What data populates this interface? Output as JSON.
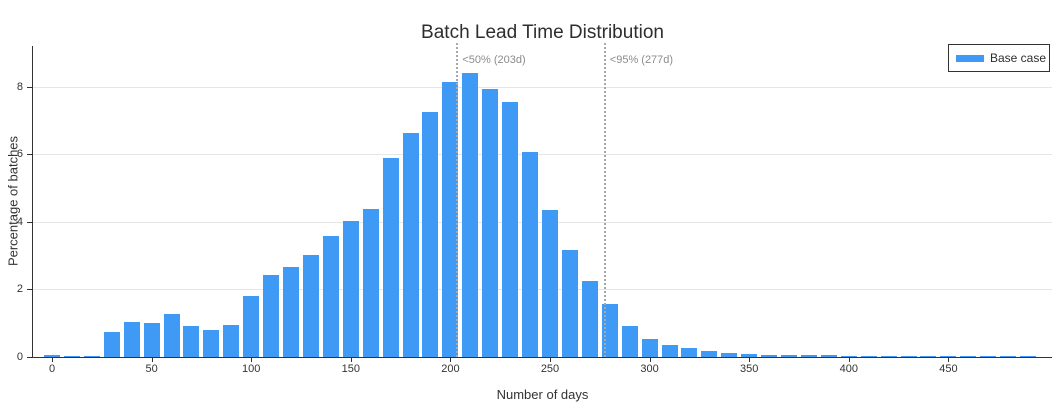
{
  "title": "Batch Lead Time Distribution",
  "legend": {
    "items": [
      {
        "label": "Base case",
        "color": "#3E9AF5"
      }
    ]
  },
  "colors": {
    "bar": "#3E9AF5",
    "grid": "#E6E6E6",
    "axis": "#333333",
    "annotation_text": "#8C8C8C",
    "dotted_line": "#A8A8A8",
    "background": "#FFFFFF"
  },
  "chart_data": {
    "type": "bar",
    "subtype": "histogram",
    "title": "Batch Lead Time Distribution",
    "xlabel": "Number of days",
    "ylabel": "Percentage of batches",
    "series_name": "Base case",
    "bar_color": "#3E9AF5",
    "bin_width_days": 10,
    "bin_centers_days": [
      0,
      10,
      20,
      30,
      40,
      50,
      60,
      70,
      80,
      90,
      100,
      110,
      120,
      130,
      140,
      150,
      160,
      170,
      180,
      190,
      200,
      210,
      220,
      230,
      240,
      250,
      260,
      270,
      280,
      290,
      300,
      310,
      320,
      330,
      340,
      350,
      360,
      370,
      380,
      390,
      400,
      410,
      420,
      430,
      440,
      450,
      460,
      470,
      480,
      490
    ],
    "values_percent": [
      0.05,
      0.04,
      0.04,
      0.75,
      1.05,
      1.0,
      1.27,
      0.92,
      0.8,
      0.96,
      1.8,
      2.44,
      2.65,
      3.02,
      3.57,
      4.01,
      4.38,
      5.9,
      6.63,
      7.26,
      8.15,
      8.4,
      7.93,
      7.55,
      6.05,
      4.35,
      3.18,
      2.25,
      1.58,
      0.93,
      0.52,
      0.36,
      0.27,
      0.17,
      0.11,
      0.08,
      0.06,
      0.05,
      0.05,
      0.05,
      0.03,
      0.02,
      0.02,
      0.02,
      0.02,
      0.02,
      0.02,
      0.02,
      0.02,
      0.02
    ],
    "xticks": [
      0,
      50,
      100,
      150,
      200,
      250,
      300,
      350,
      400,
      450
    ],
    "yticks": [
      0,
      2,
      4,
      6,
      8
    ],
    "xlim": [
      -9.5,
      502
    ],
    "ylim": [
      0,
      9.2
    ],
    "grid": true,
    "legend_position": "top-right",
    "annotations": [
      {
        "text": "<50% (203d)",
        "x_days": 203
      },
      {
        "text": "<95% (277d)",
        "x_days": 277
      }
    ]
  }
}
